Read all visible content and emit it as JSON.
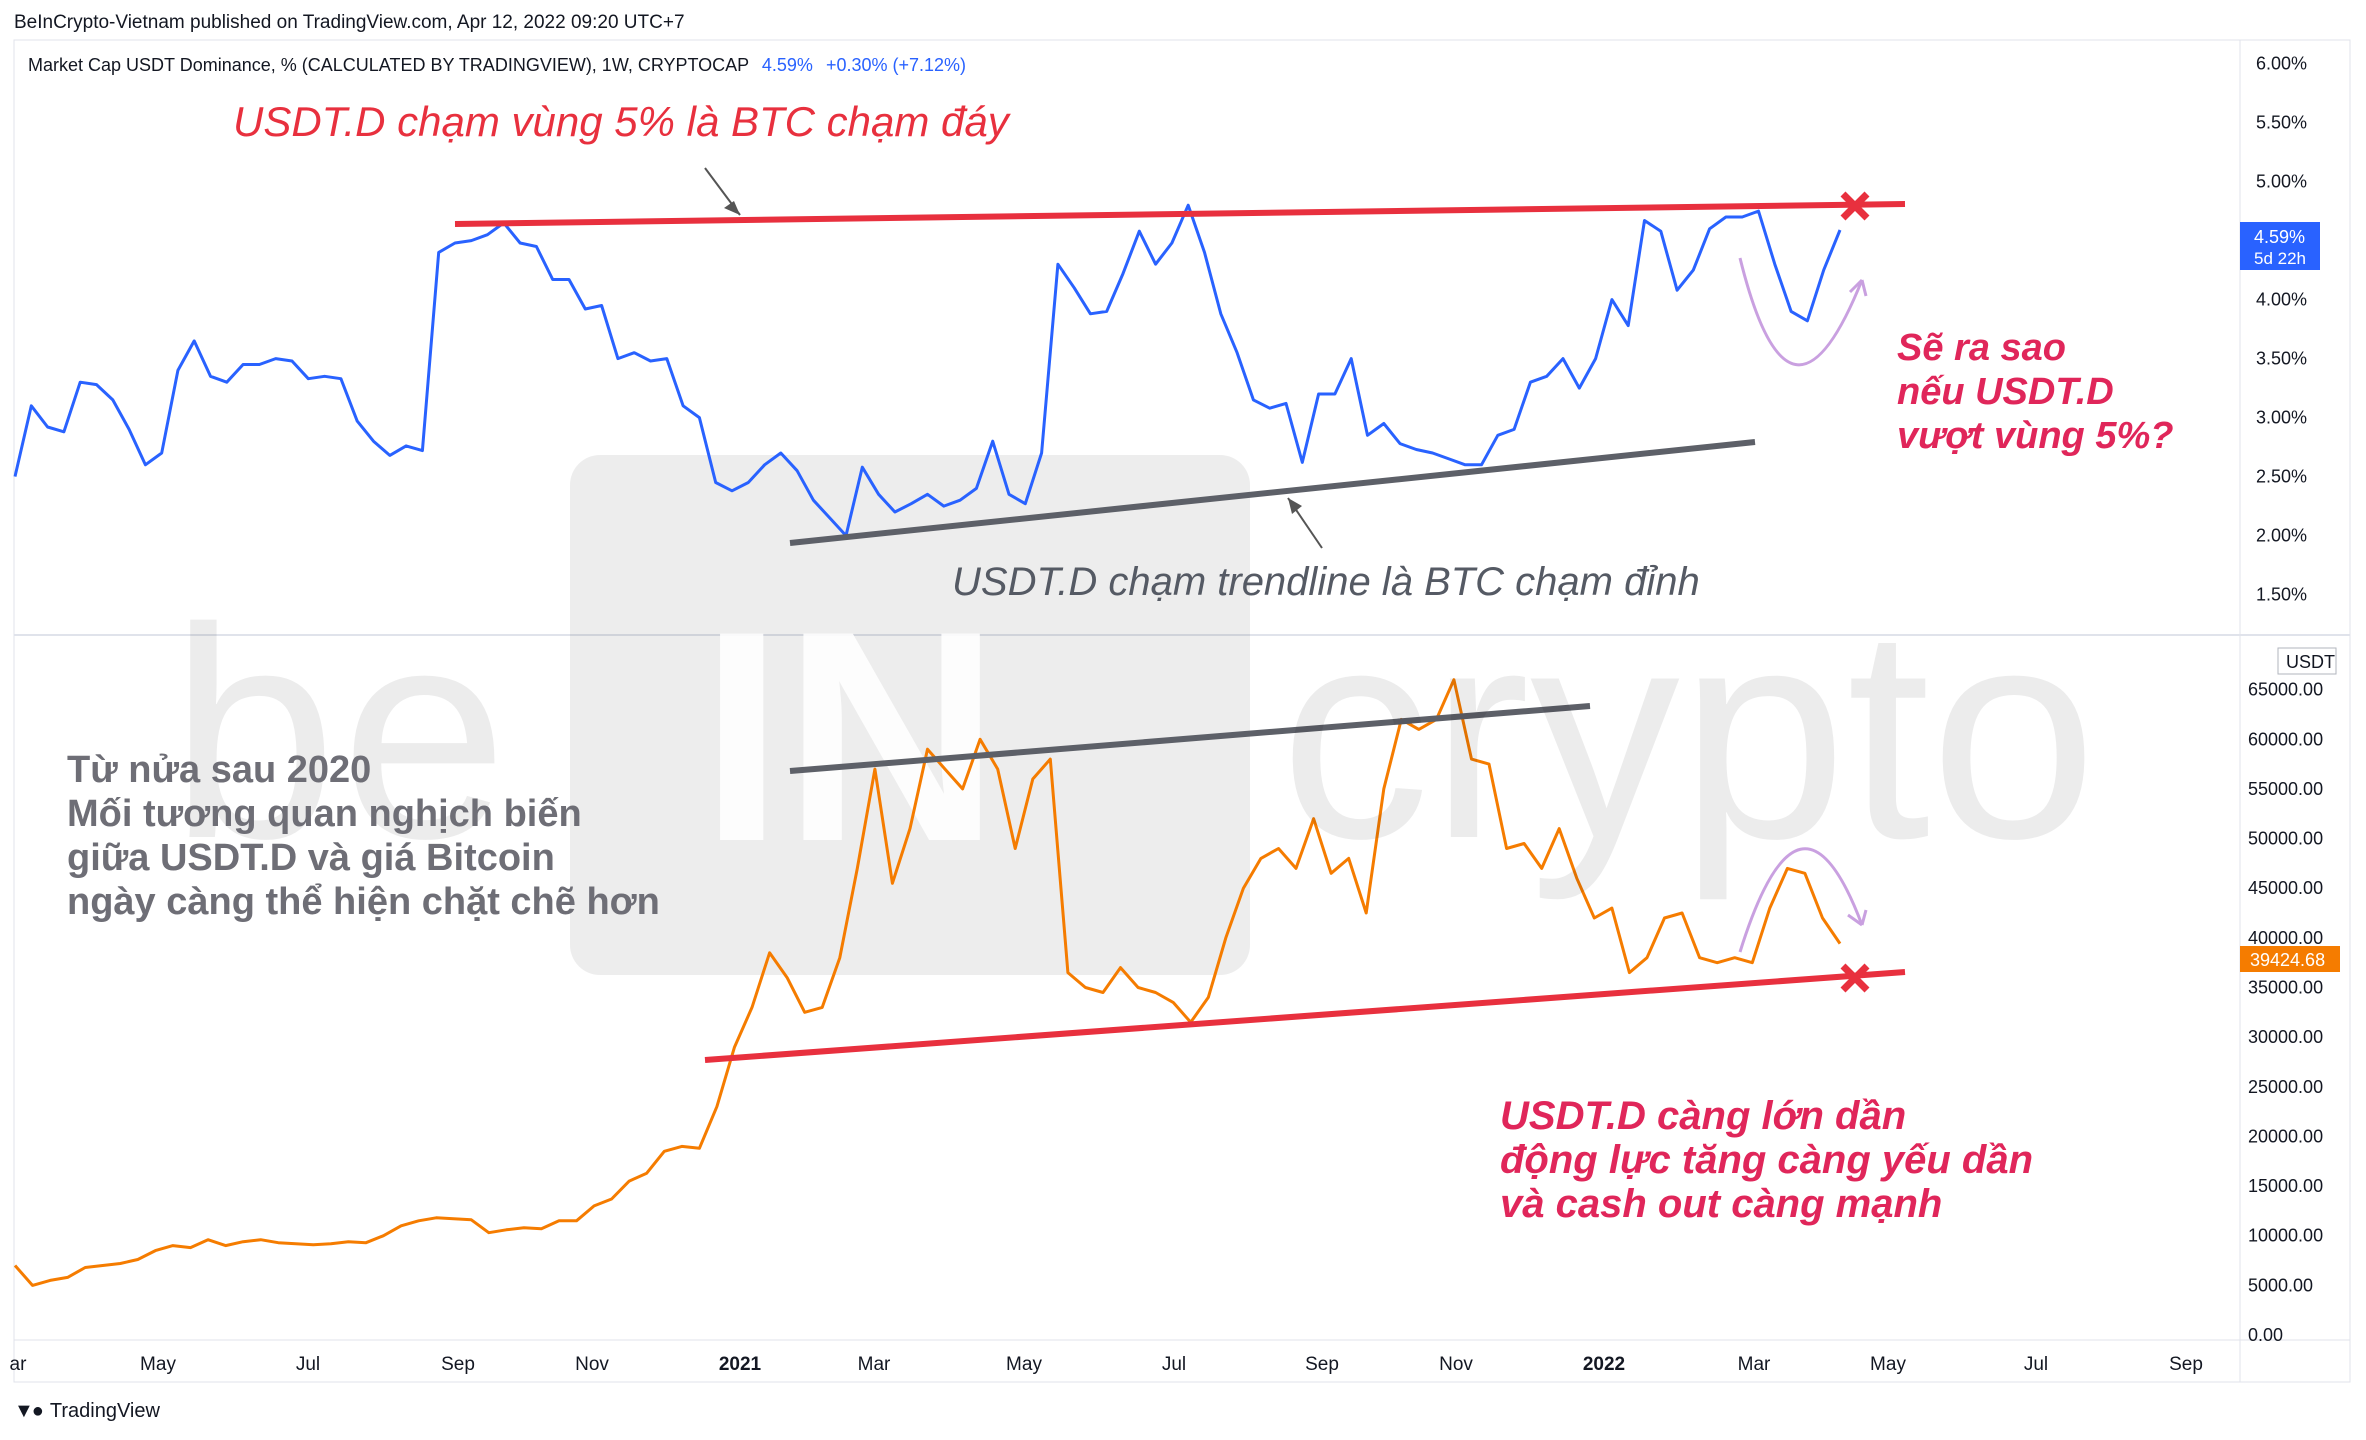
{
  "header": {
    "publisher": "BeInCrypto-Vietnam published on TradingView.com, Apr 12, 2022 09:20 UTC+7",
    "title": "Market Cap USDT Dominance, % (CALCULATED BY TRADINGVIEW), 1W, CRYPTOCAP",
    "value": "4.59%",
    "change": "+0.30% (+7.12%)"
  },
  "footer": {
    "brand": "TradingView"
  },
  "watermark": {
    "left": "be",
    "right": "crypto",
    "box": "IN"
  },
  "annotations": {
    "top_left": "USDT.D chạm vùng 5% là BTC chạm đáy",
    "trendline": "USDT.D chạm trendline là BTC chạm đỉnh",
    "question": [
      "Sẽ ra sao",
      "nếu USDT.D",
      "vượt vùng 5%?"
    ],
    "bottom_right": [
      "USDT.D càng lớn dần",
      "động lực tăng càng yếu dần",
      "và cash out càng mạnh"
    ],
    "left_note": [
      "Từ nửa sau 2020",
      "Mối tương quan nghịch biến",
      "giữa USDT.D và giá Bitcoin",
      "ngày càng thể hiện chặt chẽ hơn"
    ]
  },
  "colors": {
    "usdt": "#2962ff",
    "btc": "#f57c00",
    "red_line": "#e8303e",
    "gray_line": "#5d6068",
    "pink": "#e0265a",
    "arrow": "#c9a0e0"
  },
  "chart_data": [
    {
      "type": "line",
      "name": "USDT Dominance",
      "ylabel": "%",
      "ylim": [
        1.2,
        6.2
      ],
      "y_ticks": [
        "6.00%",
        "5.50%",
        "5.00%",
        "4.50%",
        "4.00%",
        "3.50%",
        "3.00%",
        "2.50%",
        "2.00%",
        "1.50%"
      ],
      "last_label": [
        "4.59%",
        "5d 22h"
      ],
      "values": [
        2.5,
        3.1,
        2.92,
        2.88,
        3.3,
        3.28,
        3.15,
        2.9,
        2.6,
        2.7,
        3.4,
        3.65,
        3.35,
        3.3,
        3.45,
        3.45,
        3.5,
        3.48,
        3.33,
        3.35,
        3.33,
        2.97,
        2.8,
        2.68,
        2.76,
        2.72,
        4.4,
        4.48,
        4.5,
        4.55,
        4.65,
        4.48,
        4.45,
        4.17,
        4.17,
        3.92,
        3.95,
        3.5,
        3.55,
        3.48,
        3.5,
        3.1,
        3.0,
        2.45,
        2.38,
        2.45,
        2.6,
        2.7,
        2.55,
        2.3,
        2.15,
        2.0,
        2.58,
        2.35,
        2.2,
        2.27,
        2.35,
        2.25,
        2.3,
        2.4,
        2.8,
        2.35,
        2.27,
        2.7,
        4.3,
        4.1,
        3.88,
        3.9,
        4.22,
        4.58,
        4.3,
        4.48,
        4.8,
        4.4,
        3.88,
        3.55,
        3.15,
        3.08,
        3.12,
        2.62,
        3.2,
        3.2,
        3.5,
        2.85,
        2.95,
        2.78,
        2.73,
        2.7,
        2.65,
        2.6,
        2.6,
        2.85,
        2.9,
        3.3,
        3.35,
        3.5,
        3.25,
        3.5,
        4.0,
        3.78,
        4.67,
        4.58,
        4.08,
        4.25,
        4.6,
        4.7,
        4.7,
        4.75,
        4.3,
        3.9,
        3.82,
        4.25,
        4.59
      ]
    },
    {
      "type": "line",
      "name": "Bitcoin price (USDT)",
      "ylabel": "USDT",
      "ylim": [
        0,
        70000
      ],
      "y_ticks": [
        "65000.00",
        "60000.00",
        "55000.00",
        "50000.00",
        "45000.00",
        "40000.00",
        "35000.00",
        "30000.00",
        "25000.00",
        "20000.00",
        "15000.00",
        "10000.00",
        "5000.00",
        "0.00"
      ],
      "currency_label": "USDT",
      "last_label": "39424.68",
      "values": [
        7000,
        5000,
        5500,
        5800,
        6800,
        7000,
        7200,
        7600,
        8500,
        9000,
        8800,
        9600,
        9000,
        9400,
        9600,
        9300,
        9200,
        9100,
        9200,
        9400,
        9300,
        10000,
        11000,
        11500,
        11800,
        11700,
        11600,
        10300,
        10600,
        10800,
        10700,
        11500,
        11500,
        13000,
        13700,
        15500,
        16300,
        18500,
        19000,
        18800,
        23000,
        29000,
        33000,
        38500,
        36000,
        32500,
        33000,
        38000,
        47000,
        57000,
        45500,
        51000,
        59000,
        57000,
        55000,
        60000,
        57000,
        49000,
        56000,
        58000,
        36500,
        35000,
        34500,
        37000,
        35000,
        34500,
        33500,
        31500,
        34000,
        40000,
        45000,
        48000,
        49000,
        47000,
        52000,
        46500,
        48000,
        42500,
        55000,
        62000,
        61000,
        62000,
        66000,
        58000,
        57500,
        49000,
        49500,
        47000,
        51000,
        46000,
        42000,
        43000,
        36500,
        38000,
        42000,
        42500,
        38000,
        37500,
        38000,
        37500,
        43000,
        47000,
        46500,
        42000,
        39424
      ]
    }
  ],
  "x_axis": {
    "labels": [
      "ar",
      "May",
      "Jul",
      "Sep",
      "Nov",
      "2021",
      "Mar",
      "May",
      "Jul",
      "Sep",
      "Nov",
      "2022",
      "Mar",
      "May",
      "Jul",
      "Sep"
    ],
    "bold": [
      "2021",
      "2022"
    ]
  }
}
